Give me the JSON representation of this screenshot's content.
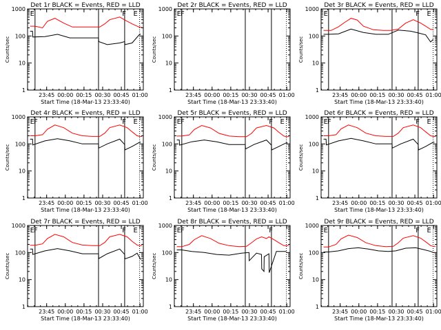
{
  "figure": {
    "background": "#ffffff",
    "events_color": "#000000",
    "lld_color": "#ff0000"
  },
  "chart_data": [
    {
      "type": "line",
      "title": "Det 1r BLACK = Events, RED = LLD",
      "ylabel": "Counts/sec",
      "xlabel": "Start Time (18-Mar-13 23:33:40)",
      "yscale": "log",
      "ylim": [
        1,
        1000
      ],
      "yticks": [
        "1",
        "10",
        "100",
        "1000"
      ],
      "xlim": [
        -4.0,
        89.0
      ],
      "xticks": [
        11.33,
        26.33,
        41.33,
        56.33,
        71.33,
        86.33
      ],
      "xticklabels": [
        "23:45",
        "00:00",
        "00:15",
        "00:30",
        "00:45",
        "01:00"
      ],
      "solid_markers": [
        2,
        53,
        74
      ],
      "dotted_markers": [
        86
      ],
      "marker_letters": [
        {
          "x": -2,
          "t": "E"
        },
        {
          "x": 72,
          "t": "F"
        },
        {
          "x": 81,
          "t": "E"
        }
      ],
      "x_events": [
        -2,
        0,
        0.2,
        10,
        20,
        30,
        40,
        50,
        53,
        53.2,
        60,
        70,
        74,
        74.2,
        80,
        86,
        87
      ],
      "events": [
        150,
        150,
        92,
        95,
        115,
        85,
        85,
        85,
        85,
        62,
        48,
        55,
        62,
        48,
        55,
        115,
        115
      ],
      "x_lld": [
        -2,
        2,
        8,
        12,
        18,
        25,
        32,
        40,
        48,
        54,
        58,
        62,
        70,
        76,
        80,
        84,
        86,
        88
      ],
      "lld": [
        230,
        230,
        200,
        350,
        450,
        300,
        215,
        215,
        215,
        215,
        280,
        400,
        500,
        350,
        280,
        230,
        210,
        210
      ],
      "gaps": []
    },
    {
      "type": "line",
      "title": "Det 2r BLACK = Events, RED = LLD",
      "ylabel": "Counts/sec",
      "xlabel": "Start Time (18-Mar-13 23:33:40)",
      "yscale": "log",
      "ylim": [
        1,
        1000
      ],
      "yticks": [
        "1",
        "10",
        "100",
        "1000"
      ],
      "xlim": [
        -4.0,
        89.0
      ],
      "xticks": [
        11.33,
        26.33,
        41.33,
        56.33,
        71.33,
        86.33
      ],
      "xticklabels": [
        "23:45",
        "00:00",
        "00:15",
        "00:30",
        "00:45",
        "01:00"
      ],
      "solid_markers": [
        2,
        53,
        74
      ],
      "dotted_markers": [
        86
      ],
      "marker_letters": [
        {
          "x": -2,
          "t": "E"
        },
        {
          "x": 1,
          "t": "F"
        }
      ],
      "x_events": [],
      "events": [],
      "x_lld": [],
      "lld": [],
      "gaps": []
    },
    {
      "type": "line",
      "title": "Det 3r BLACK = Events, RED = LLD",
      "ylabel": "Counts/sec",
      "xlabel": "Start Time (18-Mar-13 23:33:40)",
      "yscale": "log",
      "ylim": [
        1,
        1000
      ],
      "yticks": [
        "1",
        "10",
        "100",
        "1000"
      ],
      "xlim": [
        -4.0,
        89.0
      ],
      "xticks": [
        11.33,
        26.33,
        41.33,
        56.33,
        71.33,
        86.33
      ],
      "xticklabels": [
        "23:45",
        "00:00",
        "00:15",
        "00:30",
        "00:45",
        "01:00"
      ],
      "solid_markers": [
        2,
        53,
        74
      ],
      "dotted_markers": [
        86
      ],
      "marker_letters": [
        {
          "x": -2,
          "t": "E"
        },
        {
          "x": 72,
          "t": "F"
        },
        {
          "x": 81,
          "t": "E"
        }
      ],
      "x_events": [
        -2,
        2,
        10,
        20,
        30,
        40,
        50,
        58,
        68,
        74,
        80,
        84,
        86
      ],
      "events": [
        115,
        115,
        120,
        180,
        135,
        115,
        115,
        165,
        150,
        130,
        110,
        60,
        75
      ],
      "x_lld": [
        -2,
        4,
        10,
        15,
        20,
        25,
        30,
        38,
        46,
        52,
        58,
        64,
        70,
        76,
        80,
        84,
        86
      ],
      "lld": [
        160,
        160,
        220,
        320,
        450,
        390,
        230,
        170,
        160,
        160,
        180,
        300,
        400,
        300,
        230,
        175,
        175
      ],
      "gaps": []
    },
    {
      "type": "line",
      "title": "Det 4r BLACK = Events, RED = LLD",
      "ylabel": "Counts/sec",
      "xlabel": "Start Time (18-Mar-13 23:33:40)",
      "yscale": "log",
      "ylim": [
        1,
        1000
      ],
      "yticks": [
        "1",
        "10",
        "100",
        "1000"
      ],
      "xlim": [
        -4.0,
        89.0
      ],
      "xticks": [
        11.33,
        26.33,
        41.33,
        56.33,
        71.33,
        86.33
      ],
      "xticklabels": [
        "23:45",
        "00:00",
        "00:15",
        "00:30",
        "00:45",
        "01:00"
      ],
      "solid_markers": [
        2,
        53,
        74
      ],
      "dotted_markers": [
        86
      ],
      "marker_letters": [
        {
          "x": -2,
          "t": "E"
        },
        {
          "x": 1,
          "t": "F"
        },
        {
          "x": 72,
          "t": "F"
        },
        {
          "x": 81,
          "t": "E"
        }
      ],
      "x_events": [
        -2,
        0,
        0.2,
        10,
        20,
        30,
        40,
        50,
        53,
        53.2,
        60,
        70,
        74,
        74.2,
        80,
        86,
        87
      ],
      "events": [
        150,
        150,
        92,
        130,
        155,
        130,
        100,
        100,
        100,
        70,
        100,
        150,
        95,
        60,
        80,
        115,
        115
      ],
      "x_lld": [
        -2,
        2,
        8,
        12,
        18,
        25,
        32,
        40,
        48,
        54,
        58,
        62,
        70,
        76,
        80,
        84,
        86,
        88
      ],
      "lld": [
        200,
        200,
        220,
        350,
        500,
        400,
        250,
        200,
        190,
        190,
        250,
        400,
        500,
        400,
        280,
        200,
        190,
        190
      ],
      "gaps": []
    },
    {
      "type": "line",
      "title": "Det 5r BLACK = Events, RED = LLD",
      "ylabel": "Counts/sec",
      "xlabel": "Start Time (18-Mar-13 23:33:40)",
      "yscale": "log",
      "ylim": [
        1,
        1000
      ],
      "yticks": [
        "1",
        "10",
        "100",
        "1000"
      ],
      "xlim": [
        -4.0,
        89.0
      ],
      "xticks": [
        11.33,
        26.33,
        41.33,
        56.33,
        71.33,
        86.33
      ],
      "xticklabels": [
        "23:45",
        "00:00",
        "00:15",
        "00:30",
        "00:45",
        "01:00"
      ],
      "solid_markers": [
        2,
        53,
        74
      ],
      "dotted_markers": [
        86
      ],
      "marker_letters": [
        {
          "x": -2,
          "t": "E"
        },
        {
          "x": 1,
          "t": "F"
        },
        {
          "x": 72,
          "t": "F"
        },
        {
          "x": 81,
          "t": "E"
        }
      ],
      "x_events": [
        -2,
        0,
        0.2,
        10,
        20,
        30,
        40,
        50,
        53,
        53.2,
        60,
        70,
        74,
        74.2,
        80,
        86,
        87
      ],
      "events": [
        140,
        140,
        90,
        120,
        140,
        120,
        95,
        95,
        95,
        65,
        95,
        140,
        90,
        60,
        80,
        110,
        110
      ],
      "x_lld": [
        -2,
        2,
        8,
        12,
        18,
        25,
        32,
        40,
        48,
        54,
        58,
        62,
        70,
        76,
        80,
        84,
        86,
        88
      ],
      "lld": [
        195,
        195,
        215,
        340,
        480,
        390,
        245,
        195,
        185,
        185,
        245,
        390,
        480,
        390,
        270,
        195,
        185,
        185
      ],
      "gaps": []
    },
    {
      "type": "line",
      "title": "Det 6r BLACK = Events, RED = LLD",
      "ylabel": "Counts/sec",
      "xlabel": "Start Time (18-Mar-13 23:33:40)",
      "yscale": "log",
      "ylim": [
        1,
        1000
      ],
      "yticks": [
        "1",
        "10",
        "100",
        "1000"
      ],
      "xlim": [
        -4.0,
        89.0
      ],
      "xticks": [
        11.33,
        26.33,
        41.33,
        56.33,
        71.33,
        86.33
      ],
      "xticklabels": [
        "23:45",
        "00:00",
        "00:15",
        "00:30",
        "00:45",
        "01:00"
      ],
      "solid_markers": [
        2,
        53,
        74
      ],
      "dotted_markers": [
        86
      ],
      "marker_letters": [
        {
          "x": -2,
          "t": "E"
        },
        {
          "x": 1,
          "t": "F"
        },
        {
          "x": 72,
          "t": "F"
        },
        {
          "x": 81,
          "t": "E"
        }
      ],
      "x_events": [
        -2,
        0,
        0.2,
        10,
        20,
        30,
        40,
        50,
        53,
        53.2,
        60,
        70,
        74,
        74.2,
        80,
        86,
        87
      ],
      "events": [
        150,
        150,
        92,
        130,
        160,
        130,
        100,
        100,
        100,
        70,
        100,
        150,
        95,
        60,
        80,
        115,
        115
      ],
      "x_lld": [
        -2,
        2,
        8,
        12,
        18,
        25,
        32,
        40,
        48,
        54,
        58,
        62,
        70,
        76,
        80,
        84,
        86,
        88
      ],
      "lld": [
        200,
        200,
        220,
        360,
        500,
        400,
        250,
        200,
        190,
        190,
        250,
        400,
        500,
        400,
        280,
        200,
        190,
        190
      ],
      "gaps": []
    },
    {
      "type": "line",
      "title": "Det 7r BLACK = Events, RED = LLD",
      "ylabel": "Counts/sec",
      "xlabel": "Start Time (18-Mar-13 23:33:40)",
      "yscale": "log",
      "ylim": [
        1,
        1000
      ],
      "yticks": [
        "1",
        "10",
        "100",
        "1000"
      ],
      "xlim": [
        -4.0,
        89.0
      ],
      "xticks": [
        11.33,
        26.33,
        41.33,
        56.33,
        71.33,
        86.33
      ],
      "xticklabels": [
        "23:45",
        "00:00",
        "00:15",
        "00:30",
        "00:45",
        "01:00"
      ],
      "solid_markers": [
        2,
        53,
        74
      ],
      "dotted_markers": [
        86
      ],
      "marker_letters": [
        {
          "x": -2,
          "t": "E"
        },
        {
          "x": 1,
          "t": "F"
        },
        {
          "x": 72,
          "t": "F"
        },
        {
          "x": 81,
          "t": "E"
        }
      ],
      "x_events": [
        -2,
        0,
        0.2,
        10,
        20,
        30,
        40,
        50,
        53,
        53.2,
        60,
        70,
        74,
        74.2,
        80,
        84,
        86,
        87
      ],
      "events": [
        135,
        135,
        85,
        115,
        140,
        115,
        90,
        90,
        90,
        60,
        90,
        135,
        85,
        58,
        72,
        95,
        65,
        55
      ],
      "x_lld": [
        -2,
        2,
        8,
        12,
        18,
        25,
        32,
        40,
        48,
        54,
        58,
        62,
        70,
        76,
        80,
        84,
        86,
        88
      ],
      "lld": [
        185,
        185,
        210,
        330,
        470,
        380,
        235,
        190,
        180,
        180,
        235,
        380,
        470,
        380,
        260,
        190,
        180,
        180
      ],
      "gaps": []
    },
    {
      "type": "line",
      "title": "Det 8r BLACK = Events, RED = LLD",
      "ylabel": "Counts/sec",
      "xlabel": "Start Time (18-Mar-13 23:33:40)",
      "yscale": "log",
      "ylim": [
        1,
        1000
      ],
      "yticks": [
        "1",
        "10",
        "100",
        "1000"
      ],
      "xlim": [
        -4.0,
        89.0
      ],
      "xticks": [
        11.33,
        26.33,
        41.33,
        56.33,
        71.33,
        86.33
      ],
      "xticklabels": [
        "23:45",
        "00:00",
        "00:15",
        "00:30",
        "00:45",
        "01:00"
      ],
      "solid_markers": [
        2,
        53,
        74
      ],
      "dotted_markers": [
        86
      ],
      "marker_letters": [
        {
          "x": -2,
          "t": "E"
        },
        {
          "x": 1,
          "t": "F"
        },
        {
          "x": 72,
          "t": "F"
        }
      ],
      "x_events": [
        -2,
        2,
        10,
        20,
        30,
        40,
        50,
        56,
        56.2,
        62,
        66,
        66.2,
        68,
        68.2,
        72,
        72.2,
        78,
        84,
        86
      ],
      "events": [
        125,
        125,
        110,
        100,
        85,
        80,
        95,
        100,
        50,
        95,
        85,
        25,
        20,
        70,
        90,
        18,
        110,
        110,
        110
      ],
      "x_lld": [
        -2,
        2,
        8,
        12,
        18,
        25,
        32,
        40,
        48,
        54,
        58,
        62,
        66,
        70,
        72,
        76,
        80,
        84,
        88
      ],
      "lld": [
        165,
        165,
        200,
        300,
        420,
        330,
        220,
        180,
        165,
        170,
        230,
        320,
        380,
        330,
        380,
        300,
        230,
        180,
        180
      ],
      "gaps": []
    },
    {
      "type": "line",
      "title": "Det 9r BLACK = Events, RED = LLD",
      "ylabel": "Counts/sec",
      "xlabel": "Start Time (18-Mar-13 23:33:40)",
      "yscale": "log",
      "ylim": [
        1,
        1000
      ],
      "yticks": [
        "1",
        "10",
        "100",
        "1000"
      ],
      "xlim": [
        -4.0,
        89.0
      ],
      "xticks": [
        11.33,
        26.33,
        41.33,
        56.33,
        71.33,
        86.33
      ],
      "xticklabels": [
        "23:45",
        "00:00",
        "00:15",
        "00:30",
        "00:45",
        "01:00"
      ],
      "solid_markers": [
        2,
        53,
        74
      ],
      "dotted_markers": [
        86
      ],
      "marker_letters": [
        {
          "x": -2,
          "t": "E"
        },
        {
          "x": 72,
          "t": "F"
        },
        {
          "x": 81,
          "t": "E"
        }
      ],
      "x_events": [
        -2,
        2,
        10,
        18,
        26,
        34,
        42,
        50,
        56,
        64,
        72,
        78,
        84,
        86
      ],
      "events": [
        105,
        105,
        115,
        140,
        150,
        135,
        115,
        110,
        115,
        145,
        150,
        130,
        110,
        100
      ],
      "x_lld": [
        -2,
        2,
        8,
        12,
        18,
        25,
        32,
        40,
        48,
        54,
        58,
        62,
        70,
        76,
        80,
        84,
        86,
        88
      ],
      "lld": [
        160,
        160,
        200,
        320,
        440,
        360,
        230,
        180,
        165,
        170,
        230,
        340,
        420,
        340,
        250,
        180,
        170,
        170
      ],
      "gaps": []
    }
  ]
}
